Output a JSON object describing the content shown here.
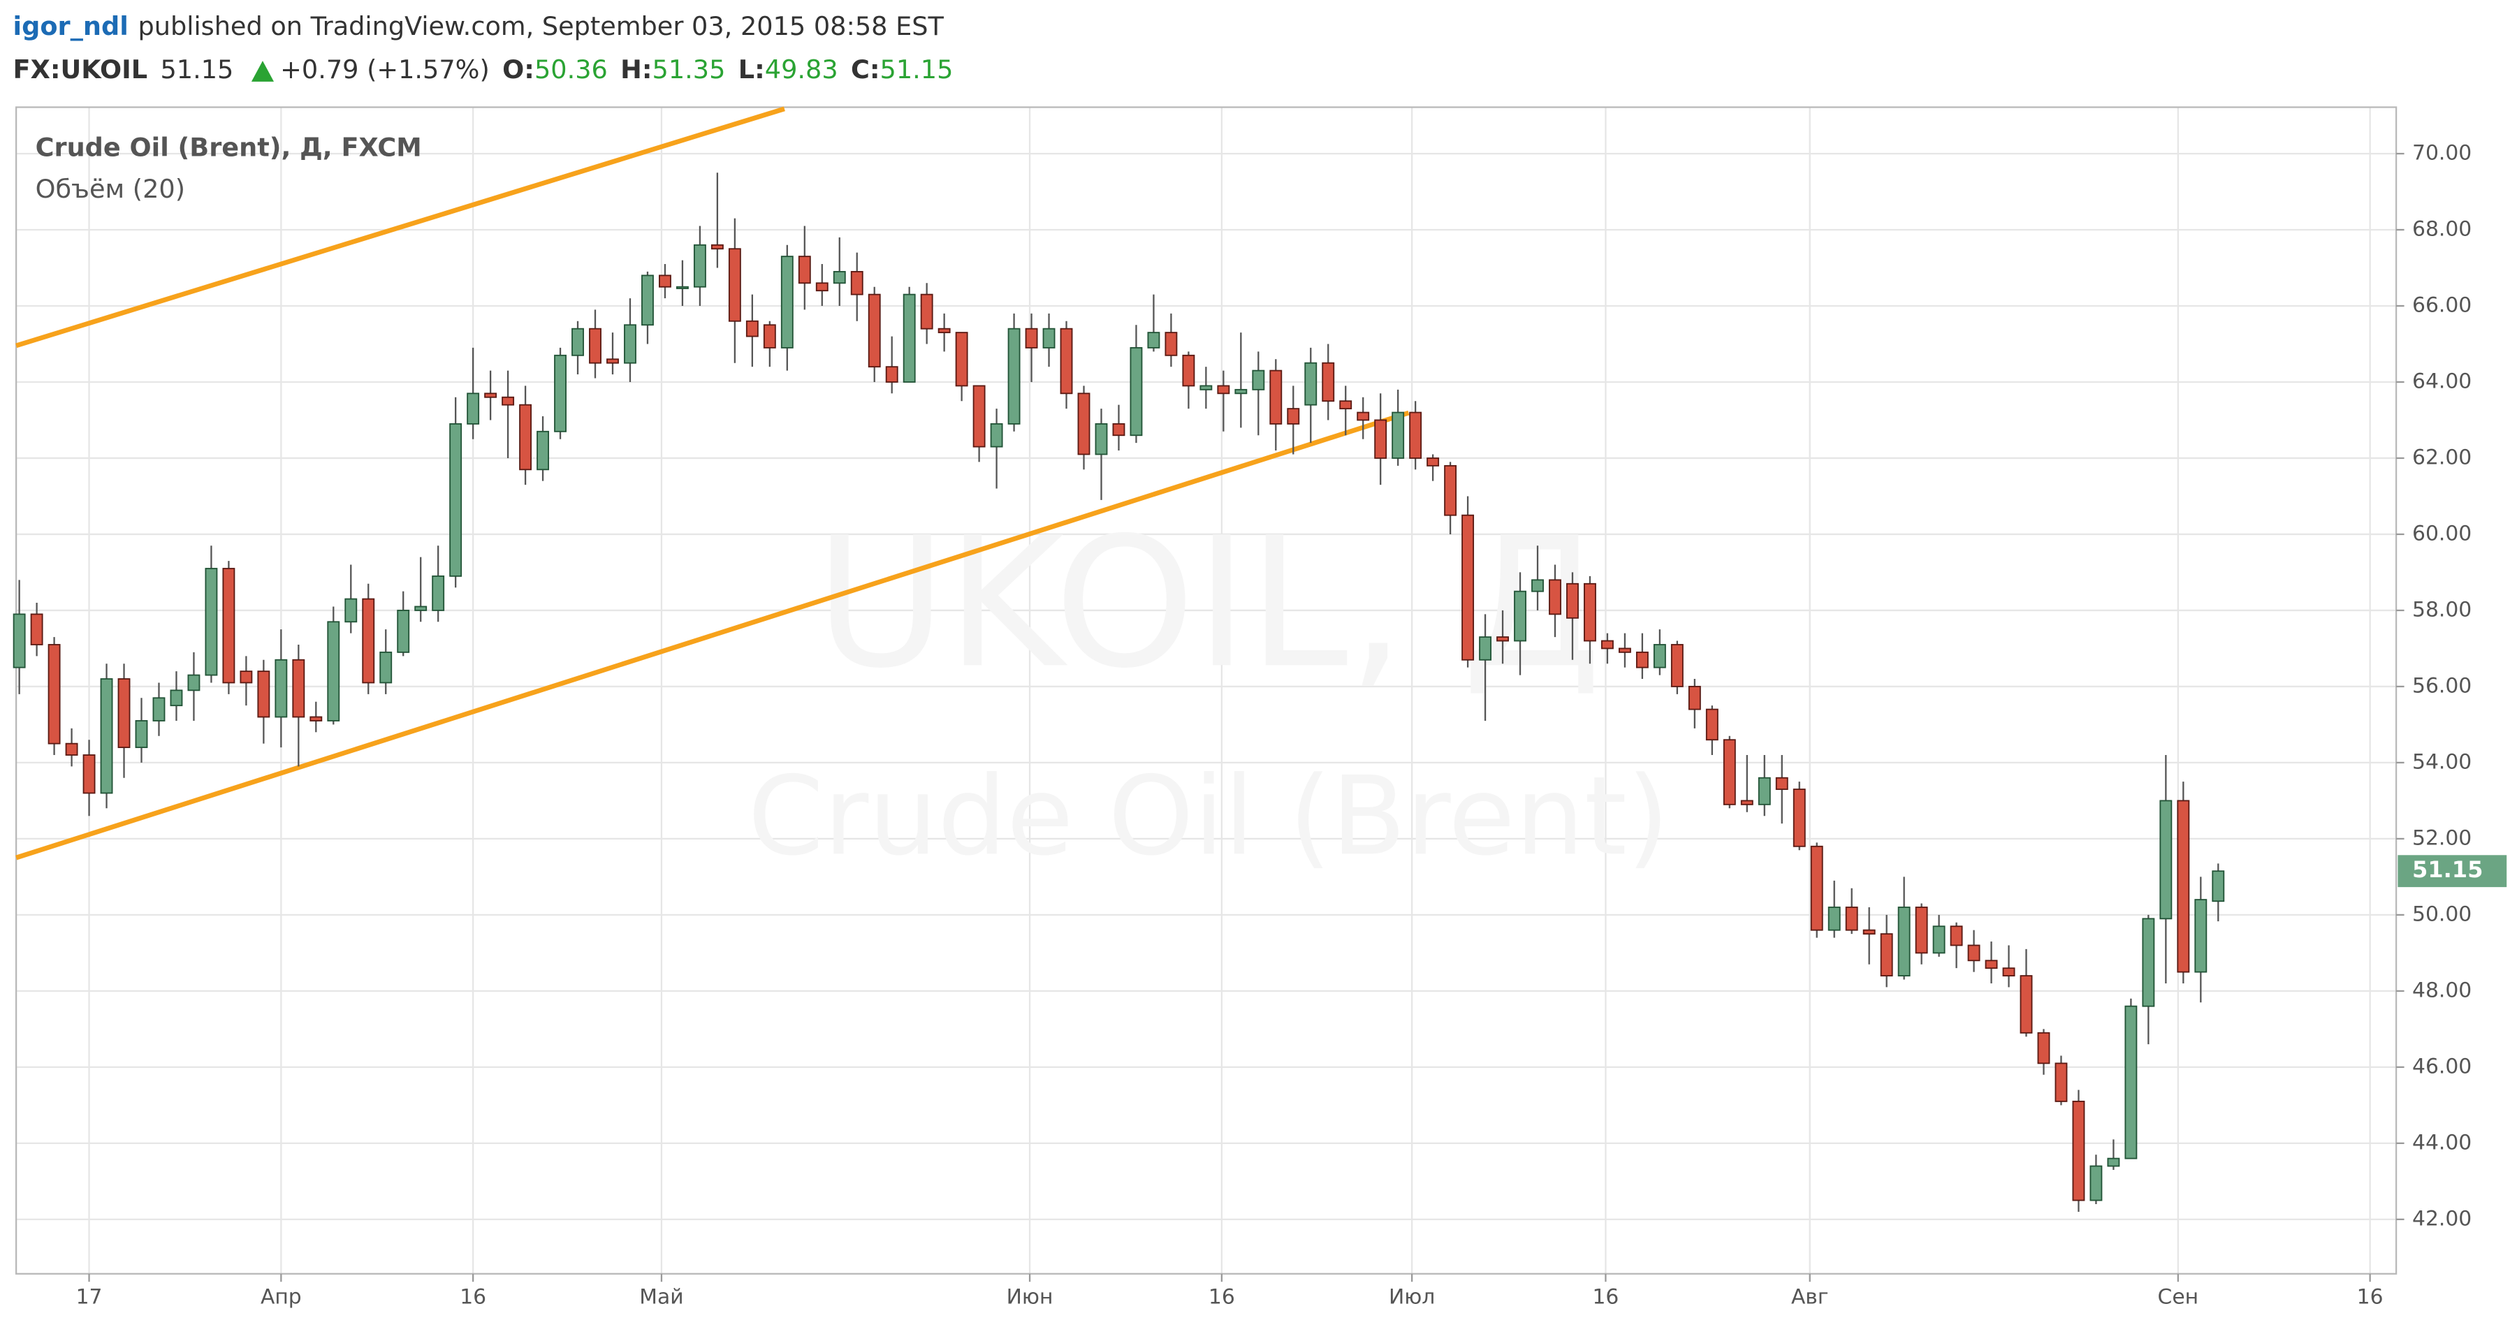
{
  "header": {
    "author": "igor_ndl",
    "published": "published on TradingView.com, September 03, 2015 08:58 EST",
    "symbol": "FX:UKOIL",
    "price": "51.15",
    "change": "+0.79 (+1.57%)",
    "ohlc": [
      {
        "label": "O:",
        "value": "50.36"
      },
      {
        "label": "H:",
        "value": "51.35"
      },
      {
        "label": "L:",
        "value": "49.83"
      },
      {
        "label": "C:",
        "value": "51.15"
      }
    ]
  },
  "chart_data": {
    "type": "candlestick",
    "title": "Crude Oil (Brent), Д, FXCM",
    "subtitle": "Объём (20)",
    "watermark": [
      "UKOIL, Д",
      "Crude Oil (Brent)"
    ],
    "up_color": "#6ba583",
    "down_color": "#d75442",
    "grid": true,
    "x": [
      0,
      1,
      2,
      3,
      4,
      5,
      6,
      7,
      8,
      9,
      10,
      11,
      12,
      13,
      14,
      15,
      16,
      17,
      18,
      19,
      20,
      21,
      22,
      23,
      24,
      25,
      26,
      27,
      28,
      29,
      30,
      31,
      32,
      33,
      34,
      35,
      36,
      37,
      38,
      39,
      40,
      41,
      42,
      43,
      44,
      45,
      46,
      47,
      48,
      49,
      50,
      51,
      52,
      53,
      54,
      55,
      56,
      57,
      58,
      59,
      60,
      61,
      62,
      63,
      64,
      65,
      66,
      67,
      68,
      69,
      70,
      71,
      72,
      73,
      74,
      75,
      76,
      77,
      78,
      79,
      80,
      81,
      82,
      83,
      84,
      85,
      86,
      87,
      88,
      89,
      90,
      91,
      92,
      93,
      94,
      95,
      96,
      97,
      98,
      99,
      100,
      101,
      102,
      103,
      104,
      105,
      106,
      107,
      108,
      109,
      110,
      111,
      112,
      113,
      114,
      115,
      116,
      117,
      118,
      119,
      120,
      121,
      122,
      123,
      124,
      125,
      126
    ],
    "open": [
      56.5,
      57.9,
      57.1,
      54.5,
      54.2,
      53.2,
      56.2,
      54.4,
      55.1,
      55.5,
      55.9,
      56.3,
      59.1,
      56.4,
      56.4,
      55.2,
      56.7,
      55.2,
      55.1,
      57.7,
      58.3,
      56.1,
      56.9,
      58.0,
      58.0,
      58.9,
      62.9,
      63.7,
      63.6,
      63.4,
      61.7,
      62.7,
      64.7,
      65.4,
      64.6,
      64.5,
      65.5,
      66.8,
      66.5,
      66.5,
      67.6,
      67.5,
      65.6,
      65.5,
      64.9,
      67.3,
      66.6,
      66.6,
      66.9,
      66.3,
      64.4,
      64.0,
      66.3,
      65.4,
      65.3,
      63.9,
      62.3,
      62.9,
      65.4,
      64.9,
      65.4,
      63.7,
      62.1,
      62.9,
      62.6,
      64.9,
      65.3,
      64.7,
      63.8,
      63.9,
      63.7,
      63.8,
      64.3,
      63.3,
      63.4,
      64.5,
      63.5,
      63.2,
      63.0,
      62.0,
      63.2,
      62.0,
      61.8,
      60.5,
      56.7,
      57.3,
      57.2,
      58.5,
      58.8,
      58.7,
      58.7,
      57.2,
      57.0,
      56.9,
      56.5,
      57.1,
      56.0,
      55.4,
      54.6,
      53.0,
      52.9,
      53.6,
      53.3,
      51.8,
      49.6,
      50.2,
      49.6,
      49.5,
      48.4,
      50.2,
      49.0,
      49.7,
      49.2,
      48.8,
      48.6,
      48.4,
      46.9,
      46.1,
      45.1,
      42.5,
      43.4,
      43.6,
      47.6,
      49.9,
      53.0,
      48.5,
      50.36
    ],
    "high": [
      58.8,
      58.2,
      57.3,
      54.9,
      54.6,
      56.6,
      56.6,
      55.7,
      56.1,
      56.4,
      56.9,
      59.7,
      59.3,
      56.8,
      56.7,
      57.5,
      57.1,
      55.6,
      58.1,
      59.2,
      58.7,
      57.5,
      58.5,
      59.4,
      59.7,
      63.6,
      64.9,
      64.3,
      64.3,
      63.9,
      63.1,
      64.9,
      65.6,
      65.9,
      65.3,
      66.2,
      66.9,
      67.1,
      67.2,
      68.1,
      69.5,
      68.3,
      66.3,
      65.6,
      67.6,
      68.1,
      67.1,
      67.8,
      67.4,
      66.5,
      65.2,
      66.5,
      66.6,
      65.8,
      65.3,
      63.9,
      63.3,
      65.8,
      65.8,
      65.8,
      65.6,
      63.9,
      63.3,
      63.4,
      65.5,
      66.3,
      65.8,
      64.8,
      64.4,
      64.3,
      65.3,
      64.8,
      64.6,
      63.9,
      64.9,
      65.0,
      63.9,
      63.6,
      63.7,
      63.8,
      63.5,
      62.1,
      61.9,
      61.0,
      57.9,
      58.0,
      59.0,
      59.7,
      59.2,
      59.0,
      58.9,
      57.4,
      57.4,
      57.4,
      57.5,
      57.2,
      56.2,
      55.5,
      54.7,
      54.2,
      54.2,
      54.2,
      53.5,
      51.9,
      50.9,
      50.7,
      50.2,
      50.0,
      51.0,
      50.3,
      50.0,
      49.8,
      49.6,
      49.3,
      49.2,
      49.1,
      47.0,
      46.3,
      45.4,
      43.7,
      44.1,
      47.8,
      50.0,
      54.2,
      53.5,
      51.0,
      51.35
    ],
    "low": [
      55.8,
      56.8,
      54.2,
      53.9,
      52.6,
      52.8,
      53.6,
      54.0,
      54.7,
      55.1,
      55.1,
      56.1,
      55.8,
      55.5,
      54.5,
      54.4,
      53.9,
      54.8,
      55.0,
      57.4,
      55.8,
      55.8,
      56.8,
      57.7,
      57.7,
      58.6,
      62.5,
      63.0,
      62.0,
      61.3,
      61.4,
      62.5,
      64.2,
      64.1,
      64.2,
      64.0,
      65.0,
      66.2,
      66.0,
      66.0,
      67.0,
      64.5,
      64.4,
      64.4,
      64.3,
      65.9,
      66.0,
      66.0,
      65.6,
      64.0,
      63.7,
      64.0,
      65.0,
      64.8,
      63.5,
      61.9,
      61.2,
      62.7,
      64.0,
      64.4,
      63.3,
      61.7,
      60.9,
      62.2,
      62.4,
      64.8,
      64.4,
      63.3,
      63.3,
      62.7,
      62.8,
      62.6,
      62.2,
      62.1,
      62.4,
      63.0,
      62.6,
      62.5,
      61.3,
      61.8,
      61.7,
      61.4,
      60.0,
      56.5,
      55.1,
      56.6,
      56.3,
      58.0,
      57.3,
      56.7,
      56.6,
      56.6,
      56.5,
      56.2,
      56.3,
      55.8,
      54.9,
      54.2,
      52.8,
      52.7,
      52.6,
      52.4,
      51.7,
      49.4,
      49.4,
      49.5,
      48.7,
      48.1,
      48.3,
      48.7,
      48.9,
      48.6,
      48.5,
      48.2,
      48.1,
      46.8,
      45.8,
      45.0,
      42.2,
      42.4,
      43.3,
      43.6,
      46.6,
      48.2,
      48.2,
      47.7,
      49.83
    ],
    "close": [
      57.9,
      57.1,
      54.5,
      54.2,
      53.2,
      56.2,
      54.4,
      55.1,
      55.7,
      55.9,
      56.3,
      59.1,
      56.1,
      56.1,
      55.2,
      56.7,
      55.2,
      55.1,
      57.7,
      58.3,
      56.1,
      56.9,
      58.0,
      58.1,
      58.9,
      62.9,
      63.7,
      63.6,
      63.4,
      61.7,
      62.7,
      64.7,
      65.4,
      64.5,
      64.5,
      65.5,
      66.8,
      66.5,
      66.5,
      67.6,
      67.5,
      65.6,
      65.2,
      64.9,
      67.3,
      66.6,
      66.4,
      66.9,
      66.3,
      64.4,
      64.0,
      66.3,
      65.4,
      65.3,
      63.9,
      62.3,
      62.9,
      65.4,
      64.9,
      65.4,
      63.7,
      62.1,
      62.9,
      62.6,
      64.9,
      65.3,
      64.7,
      63.9,
      63.9,
      63.7,
      63.8,
      64.3,
      62.9,
      62.9,
      64.5,
      63.5,
      63.3,
      63.0,
      62.0,
      63.2,
      62.0,
      61.8,
      60.5,
      56.7,
      57.3,
      57.2,
      58.5,
      58.8,
      57.9,
      57.8,
      57.2,
      57.0,
      56.9,
      56.5,
      57.1,
      56.0,
      55.4,
      54.6,
      52.9,
      52.9,
      53.6,
      53.3,
      51.8,
      49.6,
      50.2,
      49.6,
      49.5,
      48.4,
      50.2,
      49.0,
      49.7,
      49.2,
      48.8,
      48.6,
      48.4,
      46.9,
      46.1,
      45.1,
      42.5,
      43.4,
      43.6,
      47.6,
      49.9,
      53.0,
      48.5,
      50.4,
      51.15
    ],
    "last_label": {
      "value": 51.15,
      "label": "51.15"
    },
    "xlim": [
      -0.18,
      136.2
    ],
    "xticks": [
      {
        "value": 4,
        "label": "17"
      },
      {
        "value": 15,
        "label": "Апр"
      },
      {
        "value": 26,
        "label": "16"
      },
      {
        "value": 36.8,
        "label": "Май"
      },
      {
        "value": 57.9,
        "label": "Июн"
      },
      {
        "value": 68.9,
        "label": "16"
      },
      {
        "value": 79.8,
        "label": "Июл"
      },
      {
        "value": 90.9,
        "label": "16"
      },
      {
        "value": 102.6,
        "label": "Авг"
      },
      {
        "value": 123.7,
        "label": "Сен"
      },
      {
        "value": 134.7,
        "label": "16"
      }
    ],
    "ylim": [
      40.57,
      71.22
    ],
    "yticks": [
      {
        "value": 42,
        "label": "42.00"
      },
      {
        "value": 44,
        "label": "44.00"
      },
      {
        "value": 46,
        "label": "46.00"
      },
      {
        "value": 48,
        "label": "48.00"
      },
      {
        "value": 50,
        "label": "50.00"
      },
      {
        "value": 52,
        "label": "52.00"
      },
      {
        "value": 54,
        "label": "54.00"
      },
      {
        "value": 56,
        "label": "56.00"
      },
      {
        "value": 58,
        "label": "58.00"
      },
      {
        "value": 60,
        "label": "60.00"
      },
      {
        "value": 62,
        "label": "62.00"
      },
      {
        "value": 64,
        "label": "64.00"
      },
      {
        "value": 66,
        "label": "66.00"
      },
      {
        "value": 68,
        "label": "68.00"
      },
      {
        "value": 70,
        "label": "70.00"
      }
    ]
  }
}
